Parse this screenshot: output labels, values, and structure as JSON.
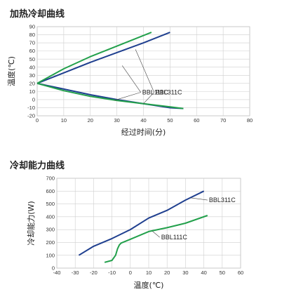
{
  "chart_data": [
    {
      "type": "line",
      "title": "加热冷却曲线",
      "xlabel": "经过时间(分)",
      "ylabel": "温度(℃)",
      "xlim": [
        0,
        80
      ],
      "ylim": [
        -20,
        90
      ],
      "xticks": [
        0,
        10,
        20,
        30,
        40,
        50,
        60,
        70,
        80
      ],
      "yticks": [
        -20,
        -10,
        0,
        10,
        20,
        30,
        40,
        50,
        60,
        70,
        80,
        90
      ],
      "grid": true,
      "colors": {
        "blue": "#1f3f8f",
        "green": "#22a04b"
      },
      "series": [
        {
          "color": "#1f3f8f",
          "x": [
            0,
            10,
            20,
            30,
            40,
            50
          ],
          "y": [
            20,
            33,
            46,
            58,
            70,
            83
          ]
        },
        {
          "color": "#22a04b",
          "x": [
            0,
            10,
            20,
            30,
            43
          ],
          "y": [
            20,
            38,
            53,
            66,
            83
          ]
        },
        {
          "color": "#1f3f8f",
          "x": [
            0,
            10,
            20,
            30,
            40,
            50,
            55
          ],
          "y": [
            20,
            13,
            6,
            0,
            -5,
            -10,
            -11
          ]
        },
        {
          "color": "#22a04b",
          "x": [
            0,
            10,
            20,
            30,
            40,
            50,
            55
          ],
          "y": [
            20,
            11,
            4,
            -1,
            -5,
            -9,
            -11
          ]
        }
      ],
      "annotations": [
        {
          "text": "BBL111C",
          "anchor": [
            39,
            9
          ],
          "targets": [
            [
              32,
              42
            ],
            [
              29,
              -1
            ]
          ]
        },
        {
          "text": "BBL311C",
          "anchor": [
            44,
            9
          ],
          "targets": [
            [
              37,
              62
            ],
            [
              40,
              -5
            ]
          ]
        }
      ]
    },
    {
      "type": "line",
      "title": "冷却能力曲线",
      "xlabel": "温度(℃)",
      "ylabel": "冷却能力(W)",
      "xlim": [
        -40,
        60
      ],
      "ylim": [
        0,
        700
      ],
      "xticks": [
        -40,
        -30,
        -20,
        -10,
        0,
        10,
        20,
        30,
        40,
        50,
        60
      ],
      "yticks": [
        0,
        100,
        200,
        300,
        400,
        500,
        600,
        700
      ],
      "grid": true,
      "series": [
        {
          "color": "#1f3f8f",
          "x": [
            -28,
            -20,
            -10,
            0,
            10,
            20,
            30,
            40
          ],
          "y": [
            100,
            170,
            230,
            300,
            390,
            450,
            530,
            600
          ]
        },
        {
          "color": "#22a04b",
          "x": [
            -14,
            -10,
            -8,
            -7,
            -6,
            -5,
            0,
            10,
            20,
            30,
            42
          ],
          "y": [
            45,
            60,
            100,
            150,
            180,
            195,
            225,
            285,
            315,
            350,
            410
          ]
        }
      ],
      "annotations": [
        {
          "text": "BBL311C",
          "anchor": [
            42,
            530
          ],
          "targets": [
            [
              33,
              547
            ]
          ]
        },
        {
          "text": "BBL111C",
          "anchor": [
            16,
            240
          ],
          "targets": [
            [
              12,
              288
            ]
          ]
        }
      ]
    }
  ]
}
